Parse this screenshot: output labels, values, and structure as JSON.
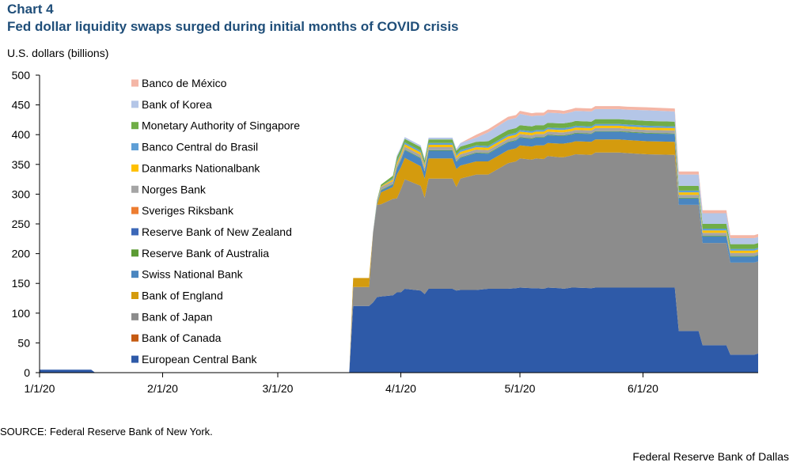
{
  "header": {
    "chart_number": "Chart 4",
    "title": "Fed dollar liquidity swaps surged during initial months of COVID crisis",
    "unit_label": "U.S. dollars (billions)"
  },
  "footer": {
    "source": "SOURCE: Federal Reserve Bank of New York.",
    "credit": "Federal Reserve Bank of Dallas"
  },
  "chart_data": {
    "type": "area",
    "stacked": true,
    "title": "Fed dollar liquidity swaps surged during initial months of COVID crisis",
    "ylabel": "U.S. dollars (billions)",
    "xlabel": "",
    "ylim": [
      0,
      500
    ],
    "yticks": [
      0,
      50,
      100,
      150,
      200,
      250,
      300,
      350,
      400,
      450,
      500
    ],
    "xlim": [
      "2020-01-01",
      "2020-06-30"
    ],
    "xticks": [
      {
        "date": "2020-01-01",
        "label": "1/1/20"
      },
      {
        "date": "2020-02-01",
        "label": "2/1/20"
      },
      {
        "date": "2020-03-01",
        "label": "3/1/20"
      },
      {
        "date": "2020-04-01",
        "label": "4/1/20"
      },
      {
        "date": "2020-05-01",
        "label": "5/1/20"
      },
      {
        "date": "2020-06-01",
        "label": "6/1/20"
      }
    ],
    "grid": false,
    "legend_position": "left, inside plot",
    "x": [
      "2020-01-01",
      "2020-01-14",
      "2020-01-15",
      "2020-03-19",
      "2020-03-20",
      "2020-03-24",
      "2020-03-25",
      "2020-03-26",
      "2020-03-27",
      "2020-03-30",
      "2020-03-31",
      "2020-04-01",
      "2020-04-02",
      "2020-04-06",
      "2020-04-07",
      "2020-04-08",
      "2020-04-14",
      "2020-04-15",
      "2020-04-16",
      "2020-04-20",
      "2020-04-23",
      "2020-04-28",
      "2020-04-30",
      "2020-05-01",
      "2020-05-04",
      "2020-05-05",
      "2020-05-07",
      "2020-05-08",
      "2020-05-11",
      "2020-05-12",
      "2020-05-14",
      "2020-05-15",
      "2020-05-19",
      "2020-05-20",
      "2020-05-26",
      "2020-05-28",
      "2020-06-02",
      "2020-06-09",
      "2020-06-10",
      "2020-06-15",
      "2020-06-16",
      "2020-06-22",
      "2020-06-23",
      "2020-06-29",
      "2020-06-30"
    ],
    "series": [
      {
        "name": "European Central Bank",
        "color": "#2e5aa8",
        "values": [
          5,
          5,
          0,
          0,
          112,
          112,
          118,
          127,
          128,
          130,
          135,
          135,
          141,
          138,
          132,
          141,
          141,
          138,
          139,
          139,
          141,
          141,
          142,
          143,
          142,
          142,
          141,
          143,
          142,
          141,
          143,
          143,
          142,
          143,
          143,
          143,
          143,
          143,
          70,
          70,
          46,
          46,
          30,
          30,
          32
        ]
      },
      {
        "name": "Bank of Canada",
        "color": "#c55a11",
        "values": [
          0,
          0,
          0,
          0,
          0,
          0,
          0,
          0,
          0,
          0,
          0,
          0,
          0,
          0,
          0,
          0,
          0,
          0,
          0,
          0,
          0,
          0,
          0,
          0,
          0,
          0,
          0,
          0,
          0,
          0,
          0,
          0,
          0,
          0,
          0,
          0,
          0,
          0,
          0,
          0,
          0,
          0,
          0,
          0,
          0
        ]
      },
      {
        "name": "Bank of Japan",
        "color": "#8c8c8c",
        "values": [
          0,
          0,
          0,
          0,
          32,
          32,
          118,
          155,
          155,
          162,
          158,
          173,
          184,
          176,
          162,
          185,
          185,
          174,
          187,
          194,
          192,
          211,
          213,
          217,
          216,
          218,
          218,
          221,
          220,
          221,
          222,
          224,
          224,
          227,
          227,
          226,
          224,
          223,
          212,
          212,
          172,
          172,
          155,
          155,
          155
        ]
      },
      {
        "name": "Bank of England",
        "color": "#d49b0e",
        "values": [
          0,
          0,
          0,
          0,
          15,
          15,
          0,
          0,
          20,
          20,
          40,
          37,
          36,
          33,
          32,
          34,
          34,
          30,
          22,
          22,
          22,
          22,
          22,
          22,
          22,
          22,
          23,
          22,
          23,
          23,
          22,
          22,
          22,
          22,
          22,
          22,
          22,
          22,
          0,
          0,
          0,
          0,
          0,
          0,
          0
        ]
      },
      {
        "name": "Swiss National Bank",
        "color": "#4a86c0",
        "values": [
          0,
          0,
          0,
          0,
          0,
          0,
          0,
          2,
          3,
          4,
          10,
          12,
          13,
          13,
          12,
          13,
          13,
          12,
          13,
          14,
          13,
          13,
          13,
          13,
          13,
          13,
          13,
          13,
          13,
          13,
          13,
          13,
          13,
          13,
          13,
          13,
          13,
          13,
          11,
          11,
          11,
          11,
          10,
          10,
          10
        ]
      },
      {
        "name": "Reserve Bank of Australia",
        "color": "#5b9b34",
        "values": [
          0,
          0,
          0,
          0,
          0,
          0,
          0,
          1,
          1,
          1,
          1,
          1,
          1,
          1,
          1,
          1,
          1,
          1,
          1,
          1,
          1,
          1,
          1,
          1,
          1,
          1,
          1,
          1,
          1,
          1,
          1,
          1,
          1,
          1,
          1,
          1,
          1,
          1,
          1,
          1,
          1,
          1,
          1,
          1,
          1
        ]
      },
      {
        "name": "Reserve Bank of New Zealand",
        "color": "#3c68b8",
        "values": [
          0,
          0,
          0,
          0,
          0,
          0,
          0,
          0,
          0,
          0,
          0,
          0,
          0,
          0,
          0,
          0,
          0,
          0,
          0,
          0,
          0,
          0,
          0,
          0,
          0,
          0,
          0,
          0,
          0,
          0,
          0,
          0,
          0,
          0,
          0,
          0,
          0,
          0,
          0,
          0,
          0,
          0,
          0,
          0,
          0
        ]
      },
      {
        "name": "Sveriges Riksbank",
        "color": "#ed7d31",
        "values": [
          0,
          0,
          0,
          0,
          0,
          0,
          0,
          0,
          0,
          0,
          0,
          0,
          0,
          0,
          0,
          0,
          0,
          0,
          0,
          0,
          0,
          0,
          0,
          0,
          0,
          0,
          0,
          0,
          0,
          0,
          0,
          0,
          0,
          0,
          0,
          0,
          0,
          0,
          0,
          0,
          0,
          0,
          0,
          0,
          0
        ]
      },
      {
        "name": "Norges Bank",
        "color": "#a5a5a5",
        "values": [
          0,
          0,
          0,
          0,
          0,
          0,
          0,
          3,
          5,
          5,
          5,
          5,
          5,
          5,
          5,
          5,
          5,
          5,
          5,
          5,
          5,
          5,
          5,
          5,
          5,
          5,
          5,
          5,
          5,
          5,
          5,
          5,
          5,
          5,
          5,
          5,
          5,
          5,
          5,
          5,
          5,
          5,
          5,
          5,
          5
        ]
      },
      {
        "name": "Danmarks Nationalbank",
        "color": "#ffc000",
        "values": [
          0,
          0,
          0,
          0,
          0,
          0,
          0,
          0,
          1,
          3,
          4,
          4,
          4,
          4,
          4,
          4,
          4,
          4,
          4,
          4,
          4,
          4,
          4,
          4,
          4,
          4,
          4,
          4,
          4,
          4,
          4,
          4,
          4,
          4,
          4,
          4,
          4,
          4,
          4,
          4,
          4,
          4,
          4,
          4,
          4
        ]
      },
      {
        "name": "Banco Central do Brasil",
        "color": "#5f9fd6",
        "values": [
          0,
          0,
          0,
          0,
          0,
          0,
          0,
          0,
          0,
          2,
          3,
          3,
          3,
          3,
          3,
          3,
          3,
          3,
          3,
          3,
          3,
          3,
          3,
          3,
          3,
          3,
          3,
          3,
          3,
          3,
          3,
          3,
          3,
          3,
          3,
          3,
          3,
          3,
          3,
          3,
          3,
          3,
          3,
          3,
          3
        ]
      },
      {
        "name": "Monetary Authority of Singapore",
        "color": "#70ad47",
        "values": [
          0,
          0,
          0,
          0,
          0,
          0,
          0,
          2,
          3,
          4,
          6,
          6,
          6,
          6,
          6,
          6,
          6,
          6,
          6,
          6,
          8,
          8,
          8,
          8,
          8,
          8,
          8,
          8,
          8,
          8,
          8,
          8,
          8,
          8,
          8,
          8,
          8,
          8,
          8,
          8,
          8,
          8,
          8,
          8,
          8
        ]
      },
      {
        "name": "Bank of Korea",
        "color": "#b4c6e7",
        "values": [
          0,
          0,
          0,
          0,
          0,
          0,
          0,
          0,
          0,
          0,
          3,
          3,
          3,
          3,
          3,
          3,
          3,
          3,
          6,
          7,
          15,
          17,
          17,
          19,
          17,
          16,
          16,
          17,
          17,
          16,
          17,
          17,
          17,
          17,
          17,
          17,
          18,
          17,
          19,
          19,
          18,
          18,
          10,
          10,
          10
        ]
      },
      {
        "name": "Banco de México",
        "color": "#f4b6a6",
        "values": [
          0,
          0,
          0,
          0,
          0,
          0,
          0,
          0,
          0,
          0,
          0,
          0,
          0,
          0,
          0,
          0,
          0,
          0,
          0,
          5,
          5,
          5,
          5,
          5,
          5,
          5,
          5,
          5,
          5,
          5,
          5,
          5,
          5,
          5,
          5,
          5,
          5,
          5,
          5,
          5,
          5,
          5,
          5,
          5,
          5
        ]
      }
    ]
  }
}
